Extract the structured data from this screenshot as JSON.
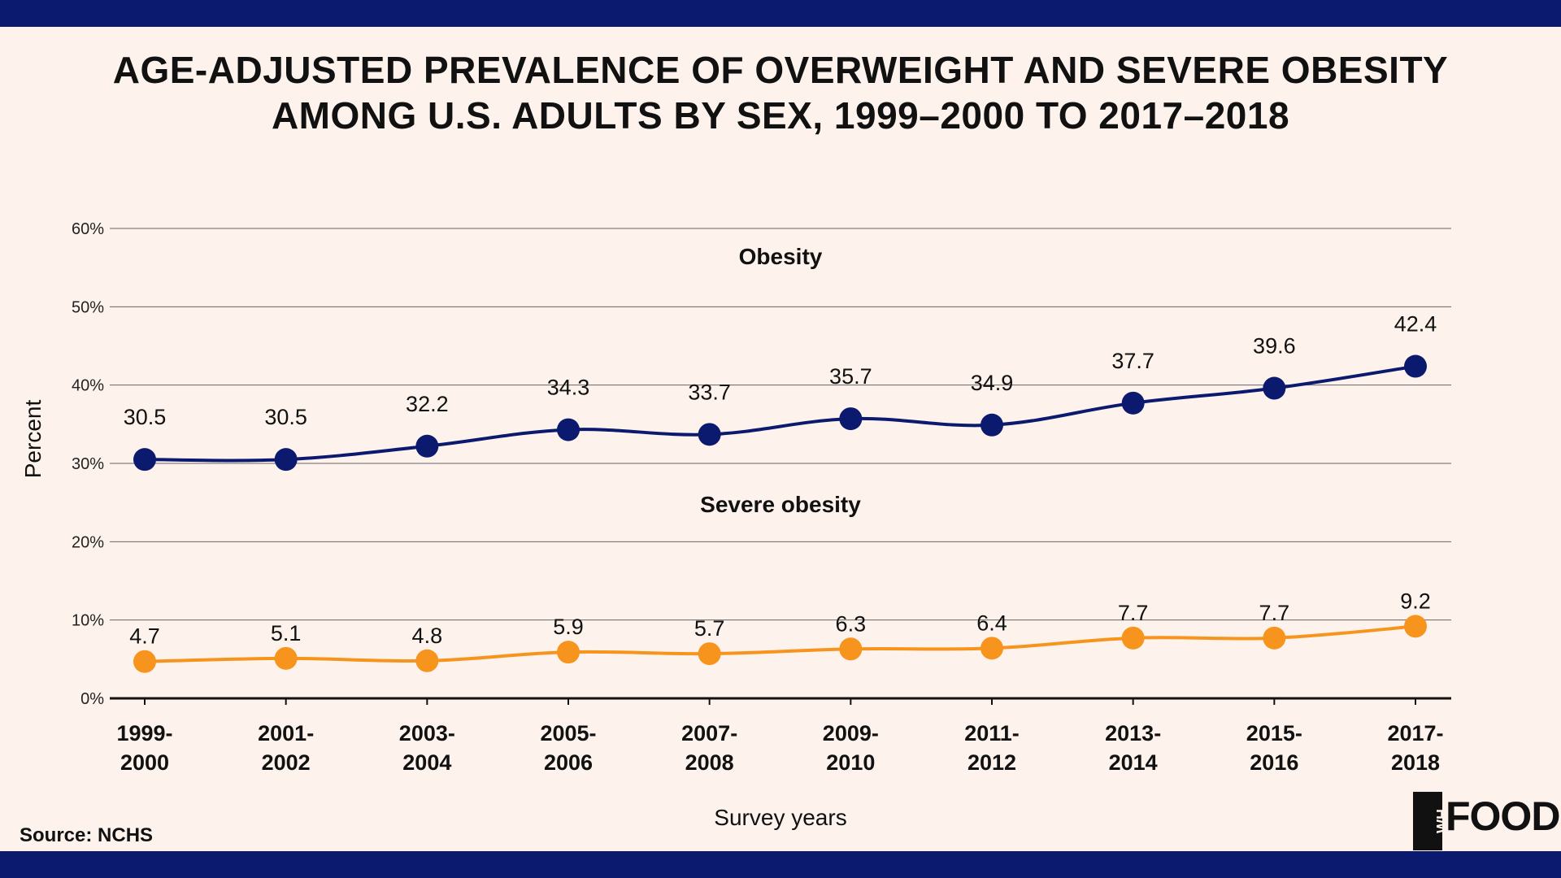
{
  "title_line1": "AGE-ADJUSTED PREVALENCE OF OVERWEIGHT AND SEVERE OBESITY",
  "title_line2": "AMONG U.S. ADULTS BY SEX, 1999–2000 TO 2017–2018",
  "source": "Source: NCHS",
  "logo": {
    "mark": "WH",
    "text": "FOODS"
  },
  "colors": {
    "band": "#0b1a6e",
    "background": "#fdf3ec",
    "obesity": "#0b1a6e",
    "severe": "#f7941d",
    "grid": "#666666"
  },
  "chart_data": {
    "type": "line",
    "xlabel": "Survey years",
    "ylabel": "Percent",
    "ylim": [
      0,
      60
    ],
    "yticks": [
      "0%",
      "10%",
      "20%",
      "30%",
      "40%",
      "50%",
      "60%"
    ],
    "grid": true,
    "categories": [
      [
        "1999-",
        "2000"
      ],
      [
        "2001-",
        "2002"
      ],
      [
        "2003-",
        "2004"
      ],
      [
        "2005-",
        "2006"
      ],
      [
        "2007-",
        "2008"
      ],
      [
        "2009-",
        "2010"
      ],
      [
        "2011-",
        "2012"
      ],
      [
        "2013-",
        "2014"
      ],
      [
        "2015-",
        "2016"
      ],
      [
        "2017-",
        "2018"
      ]
    ],
    "series": [
      {
        "name": "Obesity",
        "values": [
          30.5,
          30.5,
          32.2,
          34.3,
          33.7,
          35.7,
          34.9,
          37.7,
          39.6,
          42.4
        ]
      },
      {
        "name": "Severe obesity",
        "values": [
          4.7,
          5.1,
          4.8,
          5.9,
          5.7,
          6.3,
          6.4,
          7.7,
          7.7,
          9.2
        ]
      }
    ]
  }
}
